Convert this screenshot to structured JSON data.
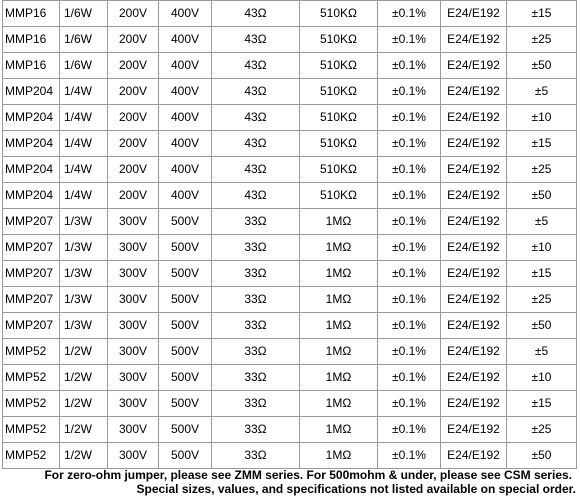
{
  "rows": [
    [
      "MMP16",
      "1/6W",
      "200V",
      "400V",
      "43Ω",
      "510KΩ",
      "±0.1%",
      "E24/E192",
      "±15"
    ],
    [
      "MMP16",
      "1/6W",
      "200V",
      "400V",
      "43Ω",
      "510KΩ",
      "±0.1%",
      "E24/E192",
      "±25"
    ],
    [
      "MMP16",
      "1/6W",
      "200V",
      "400V",
      "43Ω",
      "510KΩ",
      "±0.1%",
      "E24/E192",
      "±50"
    ],
    [
      "MMP204",
      "1/4W",
      "200V",
      "400V",
      "43Ω",
      "510KΩ",
      "±0.1%",
      "E24/E192",
      "±5"
    ],
    [
      "MMP204",
      "1/4W",
      "200V",
      "400V",
      "43Ω",
      "510KΩ",
      "±0.1%",
      "E24/E192",
      "±10"
    ],
    [
      "MMP204",
      "1/4W",
      "200V",
      "400V",
      "43Ω",
      "510KΩ",
      "±0.1%",
      "E24/E192",
      "±15"
    ],
    [
      "MMP204",
      "1/4W",
      "200V",
      "400V",
      "43Ω",
      "510KΩ",
      "±0.1%",
      "E24/E192",
      "±25"
    ],
    [
      "MMP204",
      "1/4W",
      "200V",
      "400V",
      "43Ω",
      "510KΩ",
      "±0.1%",
      "E24/E192",
      "±50"
    ],
    [
      "MMP207",
      "1/3W",
      "300V",
      "500V",
      "33Ω",
      "1MΩ",
      "±0.1%",
      "E24/E192",
      "±5"
    ],
    [
      "MMP207",
      "1/3W",
      "300V",
      "500V",
      "33Ω",
      "1MΩ",
      "±0.1%",
      "E24/E192",
      "±10"
    ],
    [
      "MMP207",
      "1/3W",
      "300V",
      "500V",
      "33Ω",
      "1MΩ",
      "±0.1%",
      "E24/E192",
      "±15"
    ],
    [
      "MMP207",
      "1/3W",
      "300V",
      "500V",
      "33Ω",
      "1MΩ",
      "±0.1%",
      "E24/E192",
      "±25"
    ],
    [
      "MMP207",
      "1/3W",
      "300V",
      "500V",
      "33Ω",
      "1MΩ",
      "±0.1%",
      "E24/E192",
      "±50"
    ],
    [
      "MMP52",
      "1/2W",
      "300V",
      "500V",
      "33Ω",
      "1MΩ",
      "±0.1%",
      "E24/E192",
      "±5"
    ],
    [
      "MMP52",
      "1/2W",
      "300V",
      "500V",
      "33Ω",
      "1MΩ",
      "±0.1%",
      "E24/E192",
      "±10"
    ],
    [
      "MMP52",
      "1/2W",
      "300V",
      "500V",
      "33Ω",
      "1MΩ",
      "±0.1%",
      "E24/E192",
      "±15"
    ],
    [
      "MMP52",
      "1/2W",
      "300V",
      "500V",
      "33Ω",
      "1MΩ",
      "±0.1%",
      "E24/E192",
      "±25"
    ],
    [
      "MMP52",
      "1/2W",
      "300V",
      "500V",
      "33Ω",
      "1MΩ",
      "±0.1%",
      "E24/E192",
      "±50"
    ]
  ],
  "footnotes": {
    "line1": "For zero-ohm jumper, please see ZMM series. For 500mohm & under, please see CSM series.",
    "line2": "Special sizes, values, and specifications not listed available on special order."
  },
  "colors": {
    "grid": "#9a9a9a",
    "text": "#000000",
    "background": "#ffffff"
  }
}
